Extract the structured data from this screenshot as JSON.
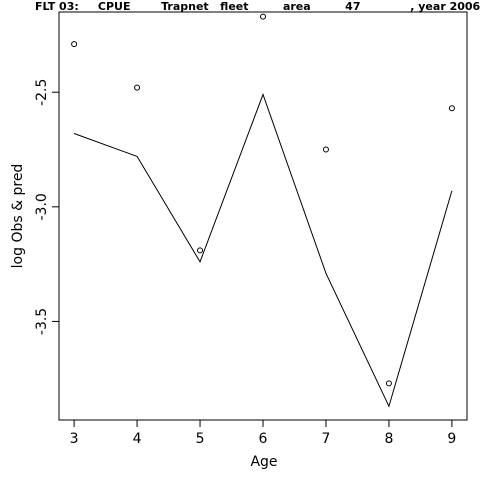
{
  "chart_data": {
    "type": "line",
    "title": "FLT 03:     CPUE        Trapnet   fleet         area         47             , year 2006",
    "xlabel": "Age",
    "ylabel": "log Obs & pred",
    "x": [
      3,
      4,
      5,
      6,
      7,
      8,
      9
    ],
    "x_ticks": [
      "3",
      "4",
      "5",
      "6",
      "7",
      "8",
      "9"
    ],
    "y_ticks": [
      -3.5,
      -3.0,
      -2.5
    ],
    "y_tick_labels": [
      "-3.5",
      "-3.0",
      "-2.5"
    ],
    "xlim": [
      2.76,
      9.24
    ],
    "ylim": [
      -3.93,
      -2.15
    ],
    "series": [
      {
        "kind": "points",
        "values": [
          -2.29,
          -2.48,
          -3.19,
          -2.17,
          -2.75,
          -3.77,
          -2.57
        ]
      },
      {
        "kind": "line",
        "values": [
          -2.68,
          -2.78,
          -3.24,
          -2.51,
          -3.29,
          -3.87,
          -2.93
        ]
      }
    ],
    "grid": false,
    "legend": "none"
  }
}
